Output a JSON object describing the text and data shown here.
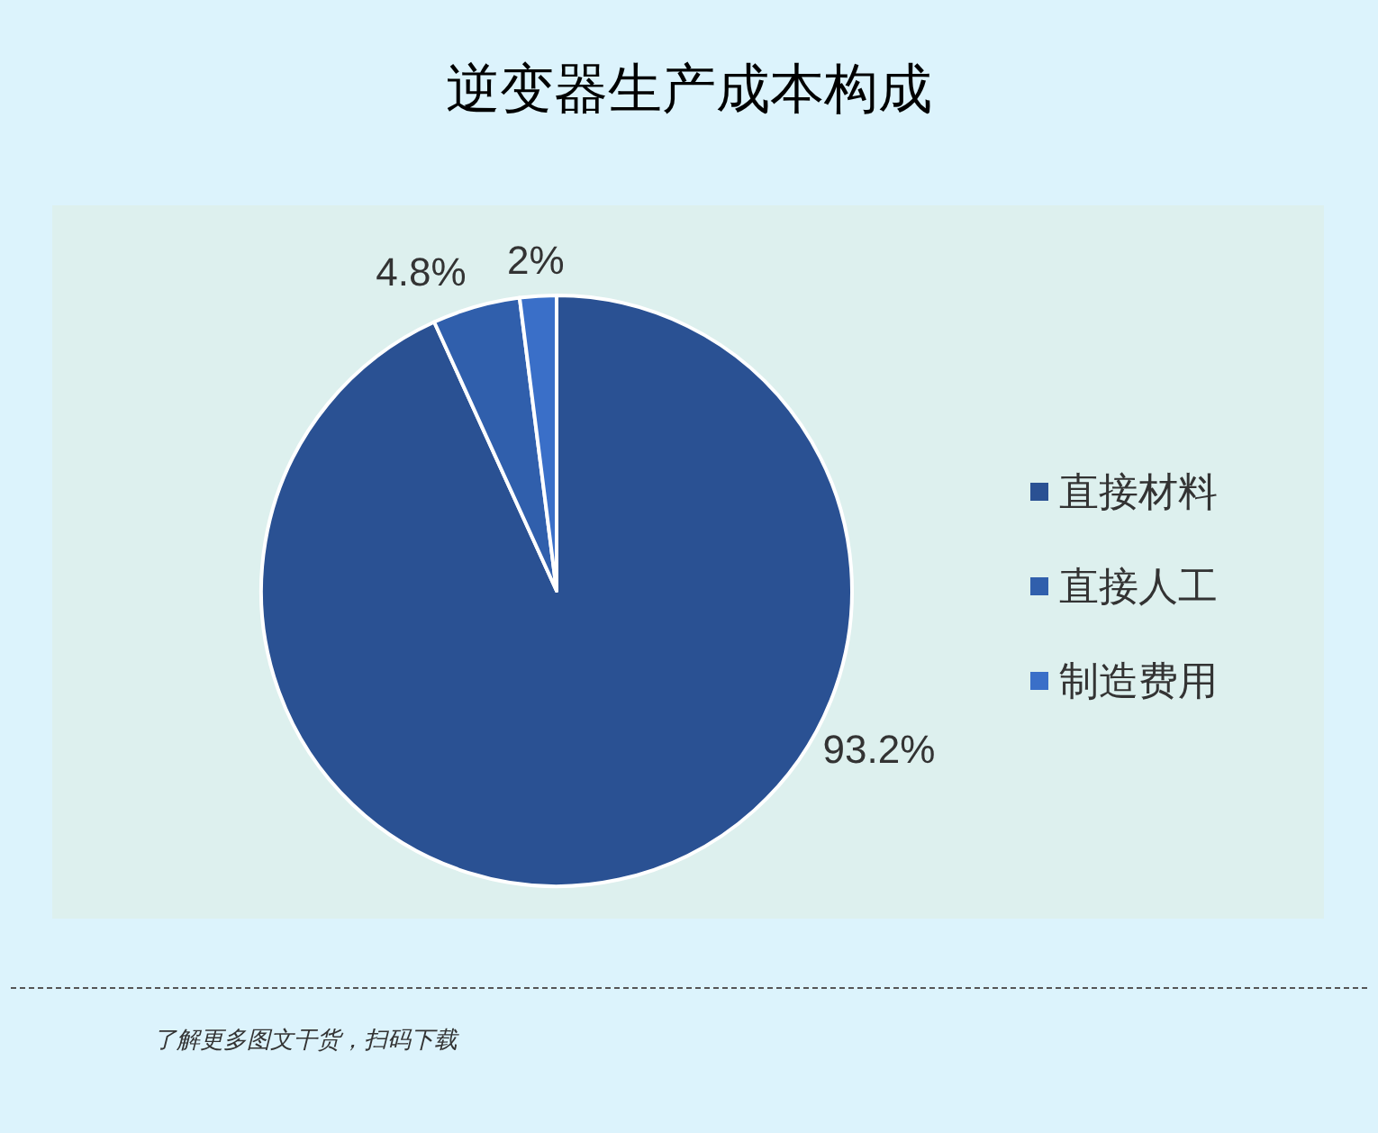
{
  "chart_data": {
    "type": "pie",
    "title": "逆变器生产成本构成",
    "categories": [
      "直接材料",
      "直接人工",
      "制造费用"
    ],
    "values": [
      93.2,
      4.8,
      2
    ],
    "colors": [
      "#2a5193",
      "#305fac",
      "#3a6fc8"
    ],
    "value_labels": [
      "93.2%",
      "4.8%",
      "2%"
    ],
    "legend": "right",
    "annotations": [
      "了解更多图文干货，扫码下载"
    ]
  }
}
